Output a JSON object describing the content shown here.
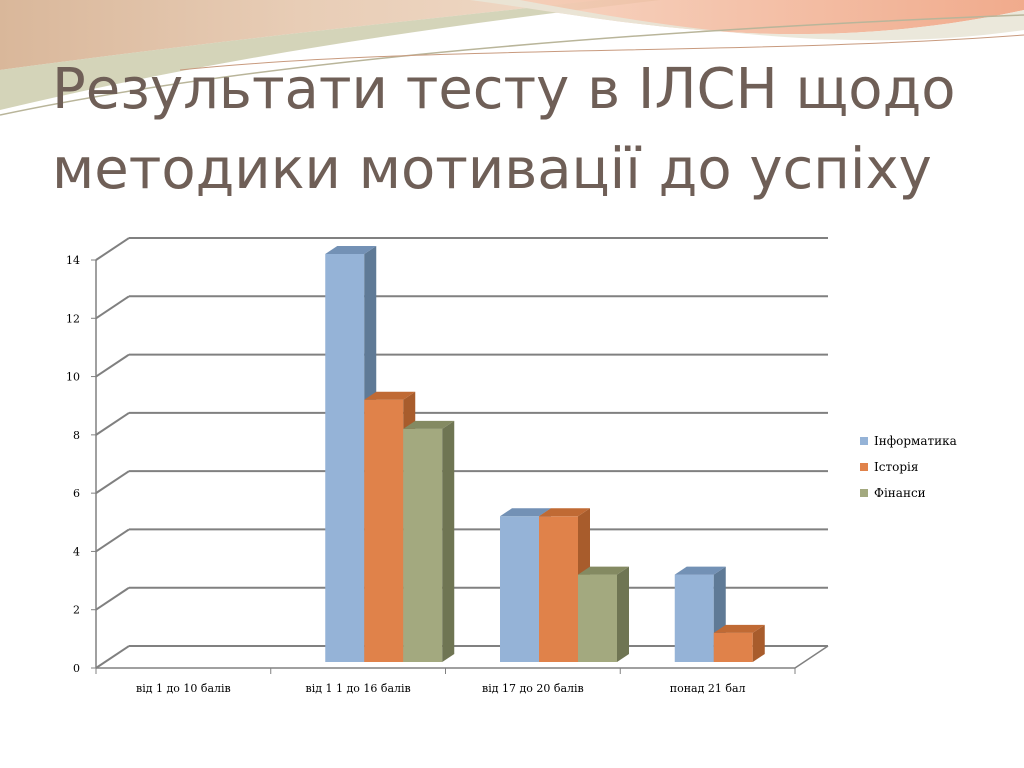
{
  "slide": {
    "title_line1": "Результати тесту в ІЛСН щодо",
    "title_line2": "методики мотивації до успіху"
  },
  "colors": {
    "title": "#6f5f57",
    "series": [
      "#95b3d7",
      "#e0824a",
      "#a3a97f"
    ],
    "series_side": [
      "#5f7a96",
      "#a85c2c",
      "#6f7553"
    ],
    "series_top": [
      "#7391b5",
      "#c06a34",
      "#848a62"
    ]
  },
  "chart_data": {
    "type": "bar",
    "variant": "3d-clustered-column",
    "title": "",
    "xlabel": "",
    "ylabel": "",
    "categories": [
      "від 1 до 10 балів",
      "від 1 1 до 16 балів",
      "від 17 до 20 балів",
      "понад 21 бал"
    ],
    "series": [
      {
        "name": "Інформатика",
        "values": [
          0,
          14,
          5,
          3
        ]
      },
      {
        "name": "Історія",
        "values": [
          0,
          9,
          5,
          1
        ]
      },
      {
        "name": "Фінанси",
        "values": [
          0,
          8,
          3,
          0
        ]
      }
    ],
    "ylim": [
      0,
      14
    ],
    "yticks": [
      "0",
      "2",
      "4",
      "6",
      "8",
      "10",
      "12",
      "14"
    ],
    "grid": true,
    "legend": "right"
  }
}
